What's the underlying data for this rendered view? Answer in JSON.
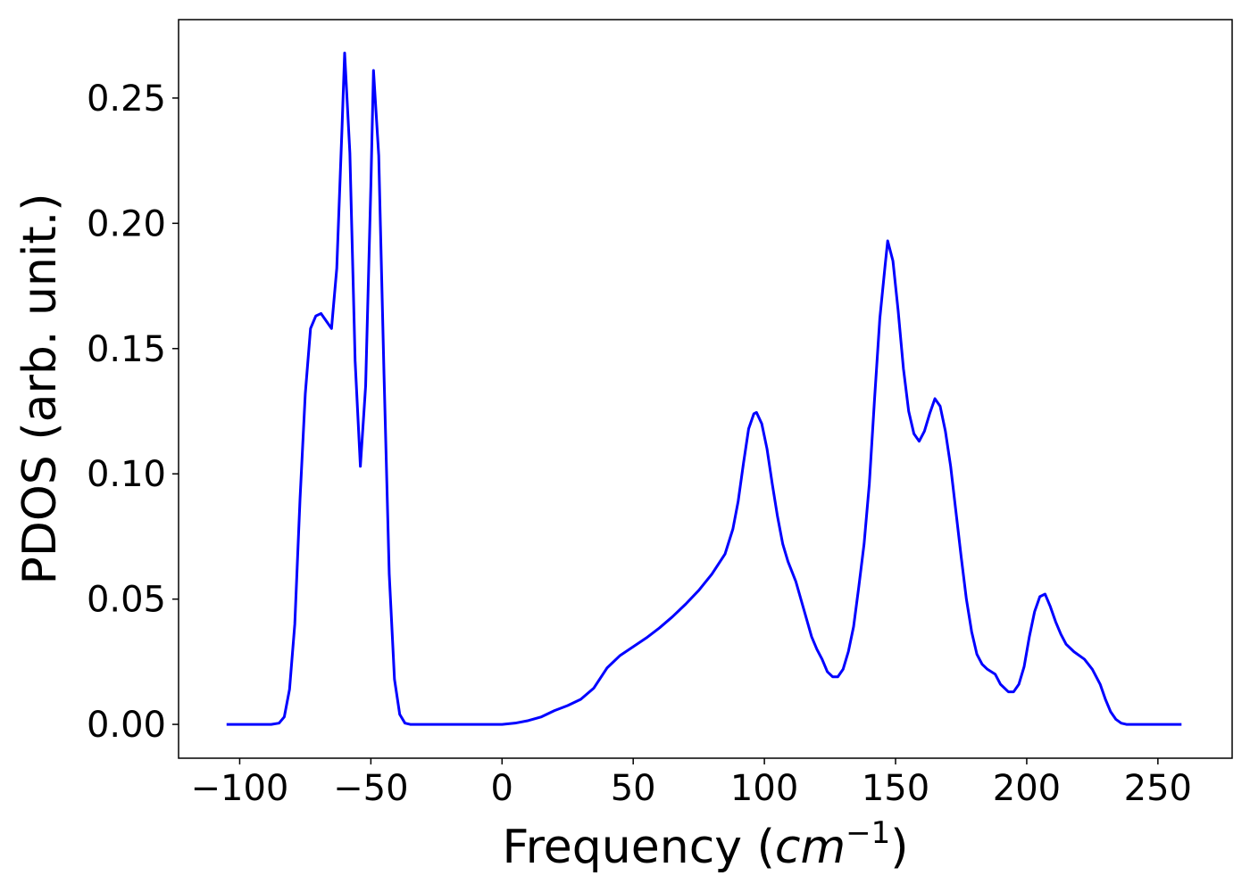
{
  "chart_data": {
    "type": "line",
    "xlabel": [
      "Frequency (",
      "cm",
      "−1",
      ")"
    ],
    "ylabel": "PDOS (arb. unit.)",
    "xlim": [
      -123.3,
      278.3
    ],
    "ylim": [
      -0.0135,
      0.2813
    ],
    "xticks": [
      {
        "value": -100,
        "label": "−100"
      },
      {
        "value": -50,
        "label": "−50"
      },
      0,
      50,
      100,
      150,
      200,
      250
    ],
    "yticks": [
      {
        "value": 0,
        "label": "0.00"
      },
      {
        "value": 0.05,
        "label": "0.05"
      },
      {
        "value": 0.1,
        "label": "0.10"
      },
      {
        "value": 0.15,
        "label": "0.15"
      },
      {
        "value": 0.2,
        "label": "0.20"
      },
      {
        "value": 0.25,
        "label": "0.25"
      }
    ],
    "series": [
      {
        "color": "#0000ff",
        "x": [
          -105,
          -88,
          -85,
          -83,
          -81,
          -79,
          -77,
          -75,
          -73,
          -71,
          -69,
          -67,
          -65,
          -63,
          -61,
          -60,
          -58,
          -56,
          -54,
          -52,
          -50,
          -49,
          -47,
          -45,
          -43,
          -41,
          -39,
          -37,
          -35,
          0,
          5,
          10,
          15,
          20,
          25,
          30,
          35,
          40,
          45,
          50,
          55,
          60,
          65,
          70,
          75,
          80,
          85,
          88,
          90,
          92,
          94,
          96,
          97,
          99,
          101,
          103,
          105,
          107,
          109,
          112,
          115,
          118,
          120,
          122,
          124,
          126,
          128,
          130,
          132,
          134,
          136,
          138,
          140,
          142,
          144,
          146,
          147,
          149,
          151,
          153,
          155,
          157,
          159,
          161,
          163,
          165,
          167,
          169,
          171,
          173,
          175,
          177,
          179,
          181,
          183,
          185,
          188,
          190,
          193,
          195,
          197,
          199,
          201,
          203,
          205,
          207,
          209,
          211,
          213,
          215,
          218,
          222,
          225,
          228,
          230,
          232,
          234,
          236,
          238,
          259
        ],
        "values": [
          0,
          0,
          0.0005,
          0.003,
          0.014,
          0.04,
          0.09,
          0.132,
          0.158,
          0.163,
          0.164,
          0.161,
          0.158,
          0.182,
          0.238,
          0.268,
          0.228,
          0.145,
          0.103,
          0.135,
          0.215,
          0.261,
          0.227,
          0.14,
          0.06,
          0.018,
          0.004,
          0.0005,
          0,
          0,
          0.0005,
          0.0015,
          0.003,
          0.0055,
          0.0075,
          0.01,
          0.0145,
          0.0225,
          0.0275,
          0.031,
          0.0345,
          0.0385,
          0.043,
          0.048,
          0.0535,
          0.06,
          0.068,
          0.078,
          0.089,
          0.104,
          0.118,
          0.124,
          0.1245,
          0.12,
          0.11,
          0.096,
          0.083,
          0.072,
          0.065,
          0.057,
          0.046,
          0.035,
          0.03,
          0.026,
          0.021,
          0.019,
          0.019,
          0.022,
          0.029,
          0.039,
          0.055,
          0.072,
          0.096,
          0.13,
          0.162,
          0.183,
          0.193,
          0.185,
          0.165,
          0.142,
          0.125,
          0.116,
          0.113,
          0.117,
          0.124,
          0.13,
          0.127,
          0.117,
          0.103,
          0.085,
          0.067,
          0.05,
          0.037,
          0.028,
          0.024,
          0.022,
          0.02,
          0.016,
          0.013,
          0.013,
          0.016,
          0.023,
          0.035,
          0.045,
          0.051,
          0.052,
          0.047,
          0.041,
          0.036,
          0.032,
          0.029,
          0.026,
          0.022,
          0.016,
          0.01,
          0.005,
          0.002,
          0.0005,
          0,
          0
        ]
      }
    ]
  }
}
